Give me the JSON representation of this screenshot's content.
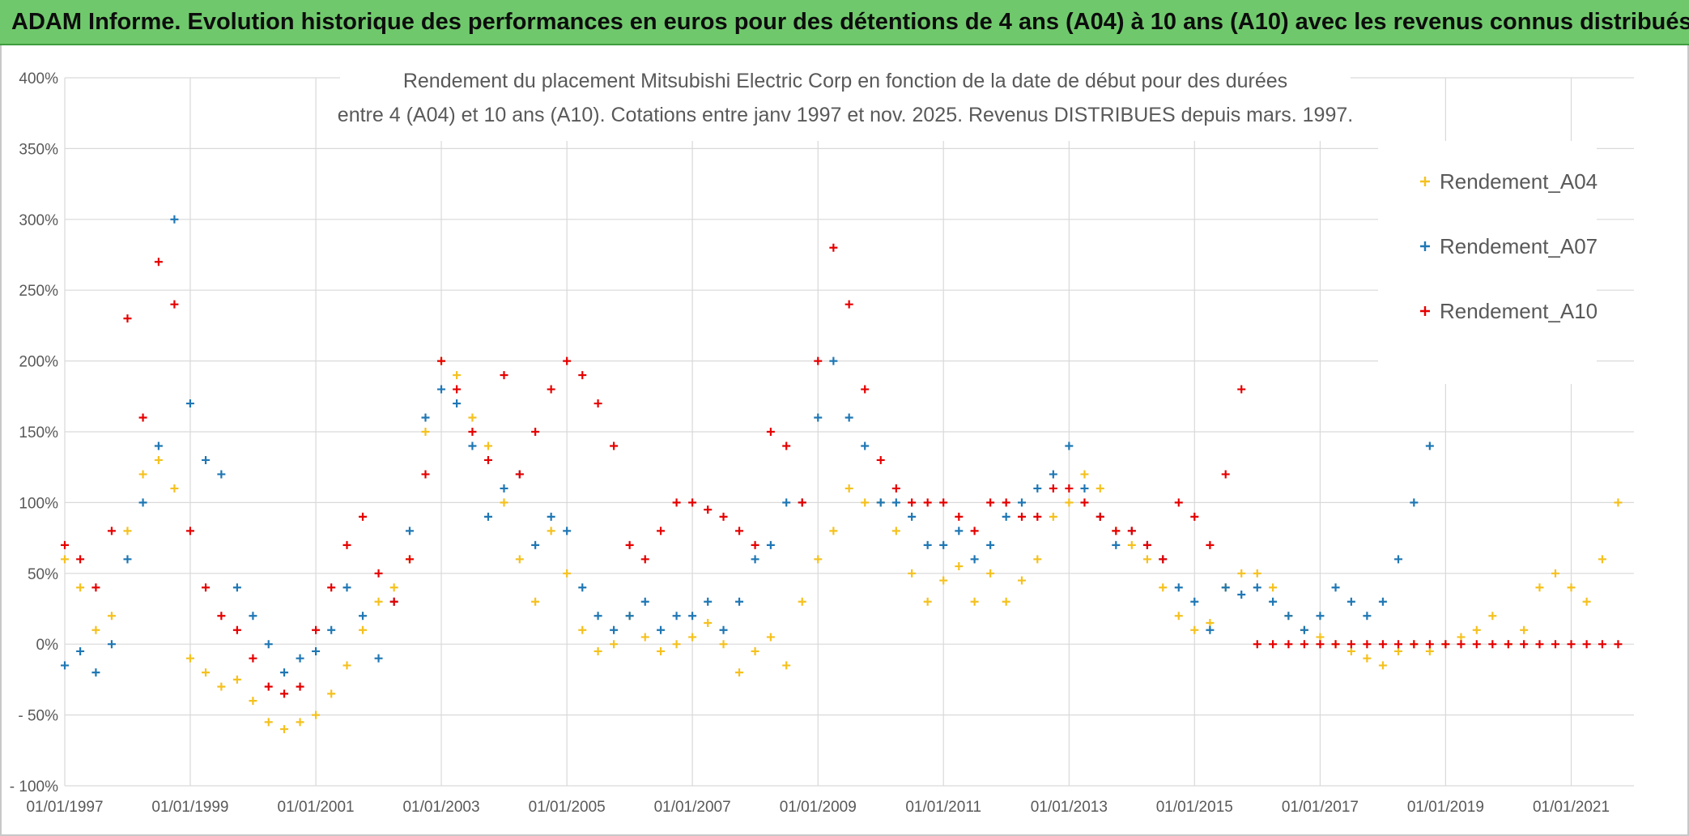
{
  "banner": {
    "text": "ADAM Informe. Evolution historique des performances en euros pour des détentions de 4 ans (A04) à 10 ans (A10) avec les revenus connus distribués"
  },
  "chart_data": {
    "type": "scatter",
    "title_lines": [
      "Rendement du placement Mitsubishi Electric Corp en fonction de la date de début pour des durées",
      "entre 4 (A04) et 10 ans (A10). Cotations entre janv 1997 et nov. 2025. Revenus DISTRIBUES depuis mars. 1997."
    ],
    "ylim": [
      -100,
      400
    ],
    "y_ticks": [
      -100,
      -50,
      0,
      50,
      100,
      150,
      200,
      250,
      300,
      350,
      400
    ],
    "y_tick_labels": [
      "- 100%",
      "- 50%",
      "0%",
      "50%",
      "100%",
      "150%",
      "200%",
      "250%",
      "300%",
      "350%",
      "400%"
    ],
    "xlim": [
      "1997-01-01",
      "2022-01-01"
    ],
    "x_ticks": [
      "1997-01-01",
      "1999-01-01",
      "2001-01-01",
      "2003-01-01",
      "2005-01-01",
      "2007-01-01",
      "2009-01-01",
      "2011-01-01",
      "2013-01-01",
      "2015-01-01",
      "2017-01-01",
      "2019-01-01",
      "2021-01-01"
    ],
    "x_tick_labels": [
      "01/01/1997",
      "01/01/1999",
      "01/01/2001",
      "01/01/2003",
      "01/01/2005",
      "01/01/2007",
      "01/01/2009",
      "01/01/2011",
      "01/01/2013",
      "01/01/2015",
      "01/01/2017",
      "01/01/2019",
      "01/01/2021"
    ],
    "grid": true,
    "legend_position": "right",
    "series": [
      {
        "name": "Rendement_A04",
        "color": "#f5c11e",
        "x": [
          "1997-01-01",
          "1997-04-01",
          "1997-07-01",
          "1997-10-01",
          "1998-01-01",
          "1998-04-01",
          "1998-07-01",
          "1998-10-01",
          "1999-01-01",
          "1999-04-01",
          "1999-07-01",
          "1999-10-01",
          "2000-01-01",
          "2000-04-01",
          "2000-07-01",
          "2000-10-01",
          "2001-01-01",
          "2001-04-01",
          "2001-07-01",
          "2001-10-01",
          "2002-01-01",
          "2002-04-01",
          "2002-07-01",
          "2002-10-01",
          "2003-01-01",
          "2003-04-01",
          "2003-07-01",
          "2003-10-01",
          "2004-01-01",
          "2004-04-01",
          "2004-07-01",
          "2004-10-01",
          "2005-01-01",
          "2005-04-01",
          "2005-07-01",
          "2005-10-01",
          "2006-01-01",
          "2006-04-01",
          "2006-07-01",
          "2006-10-01",
          "2007-01-01",
          "2007-04-01",
          "2007-07-01",
          "2007-10-01",
          "2008-01-01",
          "2008-04-01",
          "2008-07-01",
          "2008-10-01",
          "2009-01-01",
          "2009-04-01",
          "2009-07-01",
          "2009-10-01",
          "2010-01-01",
          "2010-04-01",
          "2010-07-01",
          "2010-10-01",
          "2011-01-01",
          "2011-04-01",
          "2011-07-01",
          "2011-10-01",
          "2012-01-01",
          "2012-04-01",
          "2012-07-01",
          "2012-10-01",
          "2013-01-01",
          "2013-04-01",
          "2013-07-01",
          "2013-10-01",
          "2014-01-01",
          "2014-04-01",
          "2014-07-01",
          "2014-10-01",
          "2015-01-01",
          "2015-04-01",
          "2015-07-01",
          "2015-10-01",
          "2016-01-01",
          "2016-04-01",
          "2016-07-01",
          "2016-10-01",
          "2017-01-01",
          "2017-04-01",
          "2017-07-01",
          "2017-10-01",
          "2018-01-01",
          "2018-04-01",
          "2018-07-01",
          "2018-10-01",
          "2019-01-01",
          "2019-04-01",
          "2019-07-01",
          "2019-10-01",
          "2020-01-01",
          "2020-04-01",
          "2020-07-01",
          "2020-10-01",
          "2021-01-01",
          "2021-04-01",
          "2021-07-01",
          "2021-10-01"
        ],
        "y": [
          60,
          40,
          10,
          20,
          80,
          120,
          130,
          110,
          -10,
          -20,
          -30,
          -25,
          -40,
          -55,
          -60,
          -55,
          -50,
          -35,
          -15,
          10,
          30,
          40,
          60,
          150,
          200,
          190,
          160,
          140,
          100,
          60,
          30,
          80,
          50,
          10,
          -5,
          0,
          20,
          5,
          -5,
          0,
          5,
          15,
          0,
          -20,
          -5,
          5,
          -15,
          30,
          60,
          80,
          110,
          100,
          100,
          80,
          50,
          30,
          45,
          55,
          30,
          50,
          30,
          45,
          60,
          90,
          100,
          120,
          110,
          80,
          70,
          60,
          40,
          20,
          10,
          15,
          40,
          50,
          50,
          40,
          20,
          10,
          5,
          0,
          -5,
          -10,
          -15,
          -5,
          0,
          -5,
          0,
          5,
          10,
          20,
          0,
          10,
          40,
          50,
          40,
          30,
          60,
          100
        ]
      },
      {
        "name": "Rendement_A07",
        "color": "#1f77b4",
        "x": [
          "1997-01-01",
          "1997-04-01",
          "1997-07-01",
          "1997-10-01",
          "1998-01-01",
          "1998-04-01",
          "1998-07-01",
          "1998-10-01",
          "1999-01-01",
          "1999-04-01",
          "1999-07-01",
          "1999-10-01",
          "2000-01-01",
          "2000-04-01",
          "2000-07-01",
          "2000-10-01",
          "2001-01-01",
          "2001-04-01",
          "2001-07-01",
          "2001-10-01",
          "2002-01-01",
          "2002-04-01",
          "2002-07-01",
          "2002-10-01",
          "2003-01-01",
          "2003-04-01",
          "2003-07-01",
          "2003-10-01",
          "2004-01-01",
          "2004-04-01",
          "2004-07-01",
          "2004-10-01",
          "2005-01-01",
          "2005-04-01",
          "2005-07-01",
          "2005-10-01",
          "2006-01-01",
          "2006-04-01",
          "2006-07-01",
          "2006-10-01",
          "2007-01-01",
          "2007-04-01",
          "2007-07-01",
          "2007-10-01",
          "2008-01-01",
          "2008-04-01",
          "2008-07-01",
          "2008-10-01",
          "2009-01-01",
          "2009-04-01",
          "2009-07-01",
          "2009-10-01",
          "2010-01-01",
          "2010-04-01",
          "2010-07-01",
          "2010-10-01",
          "2011-01-01",
          "2011-04-01",
          "2011-07-01",
          "2011-10-01",
          "2012-01-01",
          "2012-04-01",
          "2012-07-01",
          "2012-10-01",
          "2013-01-01",
          "2013-04-01",
          "2013-07-01",
          "2013-10-01",
          "2014-01-01",
          "2014-04-01",
          "2014-07-01",
          "2014-10-01",
          "2015-01-01",
          "2015-04-01",
          "2015-07-01",
          "2015-10-01",
          "2016-01-01",
          "2016-04-01",
          "2016-07-01",
          "2016-10-01",
          "2017-01-01",
          "2017-04-01",
          "2017-07-01",
          "2017-10-01",
          "2018-01-01",
          "2018-04-01",
          "2018-07-01",
          "2018-10-01"
        ],
        "y": [
          -15,
          -5,
          -20,
          0,
          60,
          100,
          140,
          300,
          170,
          130,
          120,
          40,
          20,
          0,
          -20,
          -10,
          -5,
          10,
          40,
          20,
          -10,
          30,
          80,
          160,
          180,
          170,
          140,
          90,
          110,
          120,
          70,
          90,
          80,
          40,
          20,
          10,
          20,
          30,
          10,
          20,
          20,
          30,
          10,
          30,
          60,
          70,
          100,
          100,
          160,
          200,
          160,
          140,
          100,
          100,
          90,
          70,
          70,
          80,
          60,
          70,
          90,
          100,
          110,
          120,
          140,
          110,
          90,
          70,
          80,
          70,
          60,
          40,
          30,
          10,
          40,
          35,
          40,
          30,
          20,
          10,
          20,
          40,
          30,
          20,
          30,
          60,
          100,
          140
        ]
      },
      {
        "name": "Rendement_A10",
        "color": "#e60000",
        "x": [
          "1997-01-01",
          "1997-04-01",
          "1997-07-01",
          "1997-10-01",
          "1998-01-01",
          "1998-04-01",
          "1998-07-01",
          "1998-10-01",
          "1999-01-01",
          "1999-04-01",
          "1999-07-01",
          "1999-10-01",
          "2000-01-01",
          "2000-04-01",
          "2000-07-01",
          "2000-10-01",
          "2001-01-01",
          "2001-04-01",
          "2001-07-01",
          "2001-10-01",
          "2002-01-01",
          "2002-04-01",
          "2002-07-01",
          "2002-10-01",
          "2003-01-01",
          "2003-04-01",
          "2003-07-01",
          "2003-10-01",
          "2004-01-01",
          "2004-04-01",
          "2004-07-01",
          "2004-10-01",
          "2005-01-01",
          "2005-04-01",
          "2005-07-01",
          "2005-10-01",
          "2006-01-01",
          "2006-04-01",
          "2006-07-01",
          "2006-10-01",
          "2007-01-01",
          "2007-04-01",
          "2007-07-01",
          "2007-10-01",
          "2008-01-01",
          "2008-04-01",
          "2008-07-01",
          "2008-10-01",
          "2009-01-01",
          "2009-04-01",
          "2009-07-01",
          "2009-10-01",
          "2010-01-01",
          "2010-04-01",
          "2010-07-01",
          "2010-10-01",
          "2011-01-01",
          "2011-04-01",
          "2011-07-01",
          "2011-10-01",
          "2012-01-01",
          "2012-04-01",
          "2012-07-01",
          "2012-10-01",
          "2013-01-01",
          "2013-04-01",
          "2013-07-01",
          "2013-10-01",
          "2014-01-01",
          "2014-04-01",
          "2014-07-01",
          "2014-10-01",
          "2015-01-01",
          "2015-04-01",
          "2015-07-01",
          "2015-10-01",
          "2016-01-01",
          "2016-04-01",
          "2016-07-01",
          "2016-10-01",
          "2017-01-01",
          "2017-04-01",
          "2017-07-01",
          "2017-10-01",
          "2018-01-01",
          "2018-04-01",
          "2018-07-01",
          "2018-10-01",
          "2019-01-01",
          "2019-04-01",
          "2019-07-01",
          "2019-10-01",
          "2020-01-01",
          "2020-04-01",
          "2020-07-01",
          "2020-10-01",
          "2021-01-01",
          "2021-04-01",
          "2021-07-01",
          "2021-10-01"
        ],
        "y": [
          70,
          60,
          40,
          80,
          230,
          160,
          270,
          240,
          80,
          40,
          20,
          10,
          -10,
          -30,
          -35,
          -30,
          10,
          40,
          70,
          90,
          50,
          30,
          60,
          120,
          200,
          180,
          150,
          130,
          190,
          120,
          150,
          180,
          200,
          190,
          170,
          140,
          70,
          60,
          80,
          100,
          100,
          95,
          90,
          80,
          70,
          150,
          140,
          100,
          200,
          280,
          240,
          180,
          130,
          110,
          100,
          100,
          100,
          90,
          80,
          100,
          100,
          90,
          90,
          110,
          110,
          100,
          90,
          80,
          80,
          70,
          60,
          100,
          90,
          70,
          120,
          180,
          0,
          0,
          0,
          0,
          0,
          0,
          0,
          0,
          0,
          0,
          0,
          0,
          0,
          0,
          0,
          0,
          0,
          0,
          0,
          0,
          0,
          0,
          0,
          0
        ]
      }
    ]
  }
}
